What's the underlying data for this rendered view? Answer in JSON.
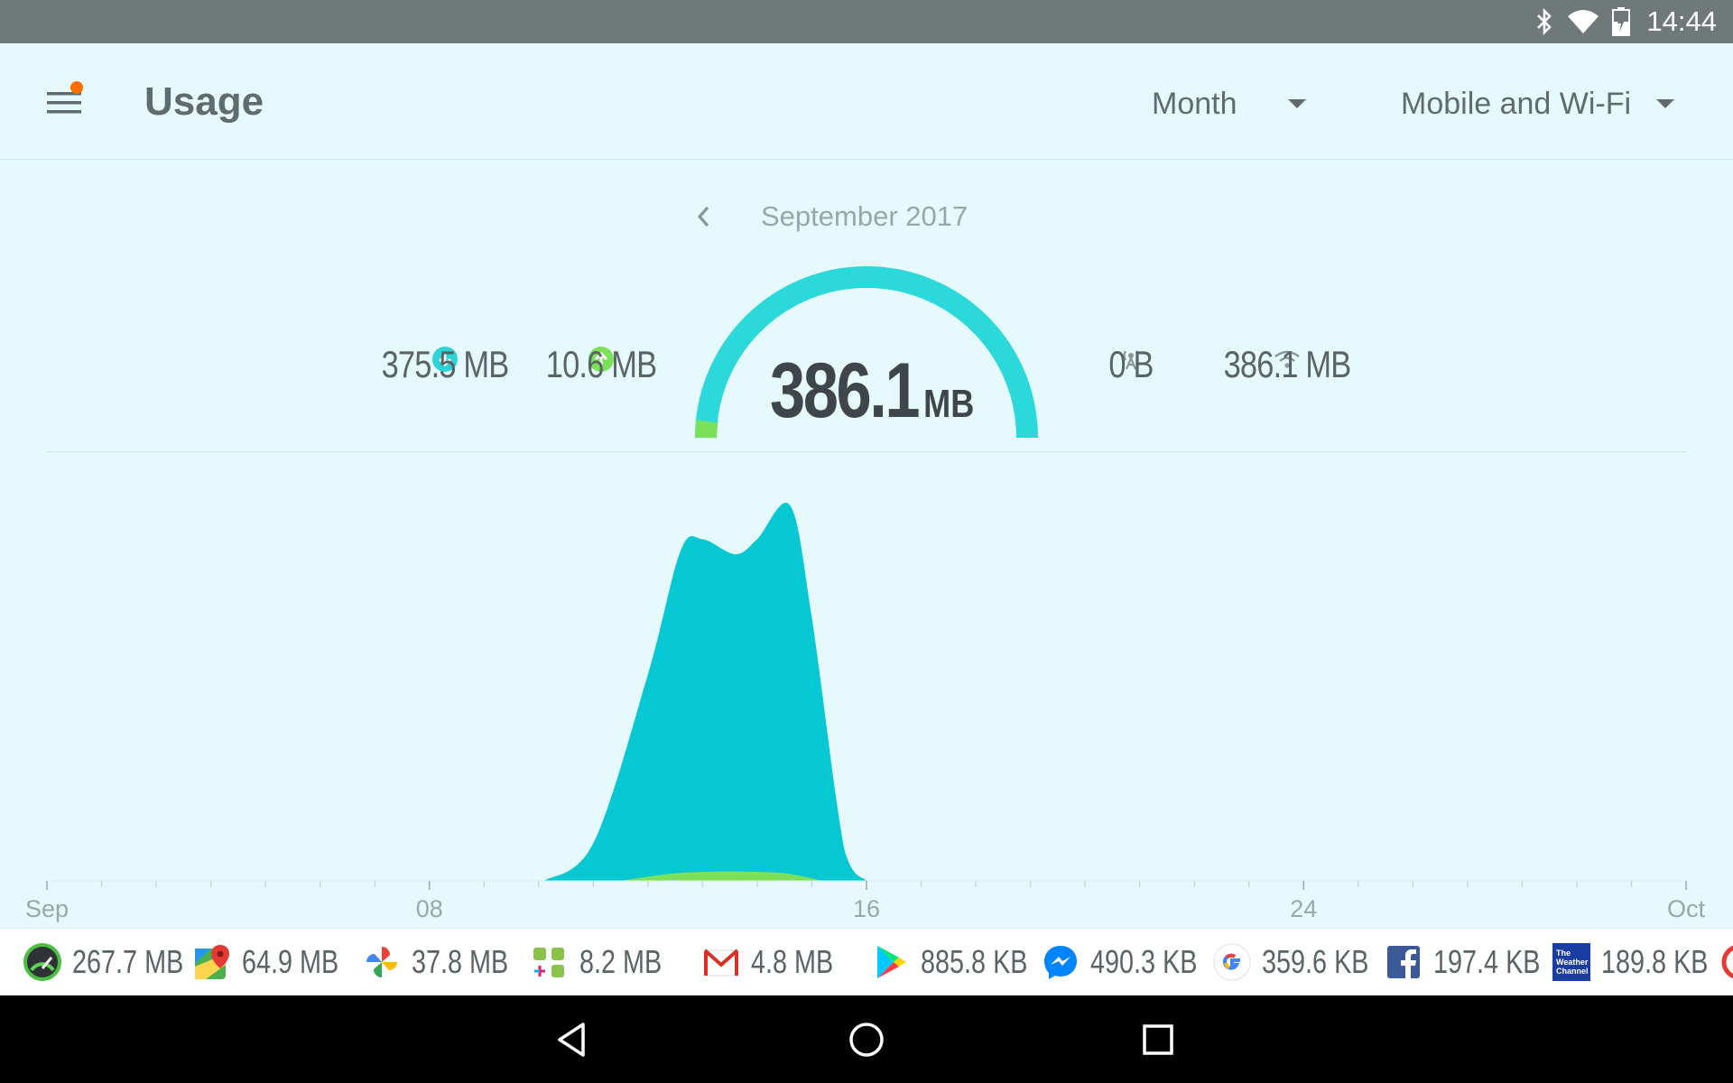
{
  "status_bar": {
    "time": "14:44",
    "icons": [
      "bluetooth-icon",
      "wifi-icon",
      "battery-charging-icon"
    ]
  },
  "app_bar": {
    "title": "Usage",
    "menu_icon": "hamburger-menu-icon",
    "notification_dot_color": "#ff6d00",
    "period_dropdown": {
      "selected": "Month"
    },
    "network_dropdown": {
      "selected": "Mobile and Wi-Fi"
    }
  },
  "period_nav": {
    "prev_icon": "chevron-left-icon",
    "label": "September 2017"
  },
  "summary": {
    "download": {
      "icon": "download-arrow-icon",
      "value": "375.5 MB",
      "color": "#2bd4d9"
    },
    "upload": {
      "icon": "upload-arrow-icon",
      "value": "10.6 MB",
      "color": "#7be05a"
    },
    "total": {
      "number": "386.1",
      "unit": "MB"
    },
    "mobile": {
      "icon": "cell-tower-icon",
      "value": "0 B"
    },
    "wifi": {
      "icon": "wifi-icon",
      "value": "386.1 MB"
    }
  },
  "chart_data": {
    "type": "area",
    "x_tick_labels": [
      "Sep",
      "08",
      "16",
      "24",
      "Oct"
    ],
    "x_ticks": [
      1,
      8,
      16,
      24,
      31
    ],
    "xlim": [
      1,
      31
    ],
    "grid": false,
    "series": [
      {
        "color": "#05c8d2",
        "x": [
          10.1,
          11,
          12,
          12.6,
          13,
          13.6,
          14,
          14.6,
          15,
          15.6,
          16
        ],
        "values": [
          0,
          0.1,
          0.55,
          0.88,
          0.91,
          0.87,
          0.91,
          1.0,
          0.7,
          0.08,
          0
        ]
      },
      {
        "color": "#7be05a",
        "x": [
          11.5,
          12.5,
          13.5,
          14.5,
          15.2
        ],
        "values": [
          0,
          0.02,
          0.025,
          0.02,
          0
        ]
      }
    ]
  },
  "apps": [
    {
      "icon": "speedtest-icon",
      "size": "267.7 MB"
    },
    {
      "icon": "google-maps-icon",
      "size": "64.9 MB"
    },
    {
      "icon": "google-photos-icon",
      "size": "37.8 MB"
    },
    {
      "icon": "android-system-icon",
      "size": "8.2 MB"
    },
    {
      "icon": "gmail-icon",
      "size": "4.8 MB"
    },
    {
      "icon": "google-play-icon",
      "size": "885.8 KB"
    },
    {
      "icon": "messenger-icon",
      "size": "490.3 KB"
    },
    {
      "icon": "google-icon",
      "size": "359.6 KB"
    },
    {
      "icon": "facebook-icon",
      "size": "197.4 KB"
    },
    {
      "icon": "weather-channel-icon",
      "size": "189.8 KB",
      "icon_text": "The Weather Channel"
    }
  ],
  "nav_bar": {
    "back_icon": "back-triangle-icon",
    "home_icon": "home-circle-icon",
    "recents_icon": "recents-square-icon"
  }
}
